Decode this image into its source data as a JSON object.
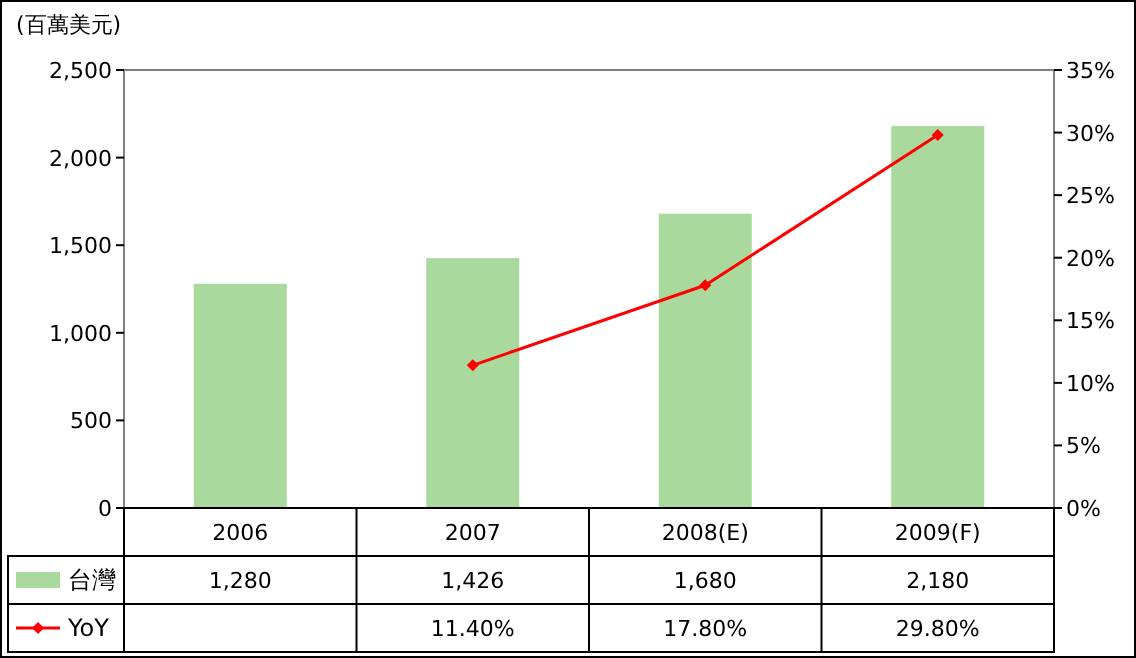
{
  "chart_data": {
    "type": "bar",
    "ylabel": "(百萬美元)",
    "categories": [
      "2006",
      "2007",
      "2008(E)",
      "2009(F)"
    ],
    "ylim": [
      0,
      2500
    ],
    "yticks": [
      {
        "value": 0,
        "label": "0"
      },
      {
        "value": 500,
        "label": "500"
      },
      {
        "value": 1000,
        "label": "1,000"
      },
      {
        "value": 1500,
        "label": "1,500"
      },
      {
        "value": 2000,
        "label": "2,000"
      },
      {
        "value": 2500,
        "label": "2,500"
      }
    ],
    "y2lim": [
      0,
      35
    ],
    "y2ticks": [
      {
        "value": 0,
        "label": "0%"
      },
      {
        "value": 5,
        "label": "5%"
      },
      {
        "value": 10,
        "label": "10%"
      },
      {
        "value": 15,
        "label": "15%"
      },
      {
        "value": 20,
        "label": "20%"
      },
      {
        "value": 25,
        "label": "25%"
      },
      {
        "value": 30,
        "label": "30%"
      },
      {
        "value": 35,
        "label": "35%"
      }
    ],
    "legend": "bottom",
    "marker": "diamond",
    "series": [
      {
        "name": "台灣",
        "color": "#a9d99c",
        "values": [
          1280,
          1426,
          1680,
          2180
        ],
        "value_labels": [
          "1,280",
          "1,426",
          "1,680",
          "2,180"
        ]
      },
      {
        "name": "YoY",
        "type": "line",
        "axis": "y2",
        "color": "#ff0000",
        "values": [
          null,
          11.4,
          17.8,
          29.8
        ],
        "value_labels": [
          null,
          "11.40%",
          "17.80%",
          "29.80%"
        ]
      }
    ]
  }
}
